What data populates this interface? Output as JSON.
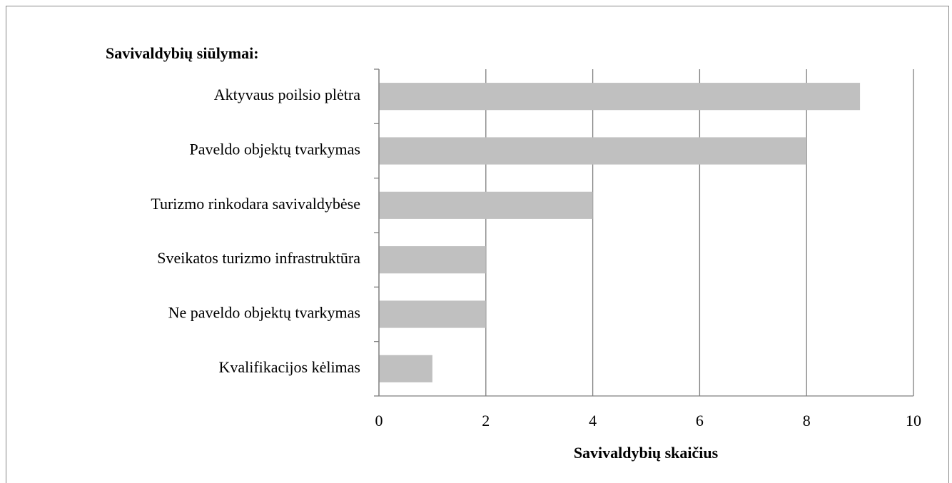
{
  "chart_data": {
    "type": "bar",
    "orientation": "horizontal",
    "title": "Savivaldybių siūlymai:",
    "x_label": "Savivaldybių skaičius",
    "categories": [
      "Aktyvaus poilsio plėtra",
      "Paveldo objektų tvarkymas",
      "Turizmo rinkodara savivaldybėse",
      "Sveikatos turizmo infrastruktūra",
      "Ne paveldo objektų tvarkymas",
      "Kvalifikacijos kėlimas"
    ],
    "values": [
      9,
      8,
      4,
      2,
      2,
      1
    ],
    "color": "#c0c0c0",
    "xlim": [
      0,
      10
    ],
    "xticks": [
      0,
      2,
      4,
      6,
      8,
      10
    ],
    "grid": true
  }
}
